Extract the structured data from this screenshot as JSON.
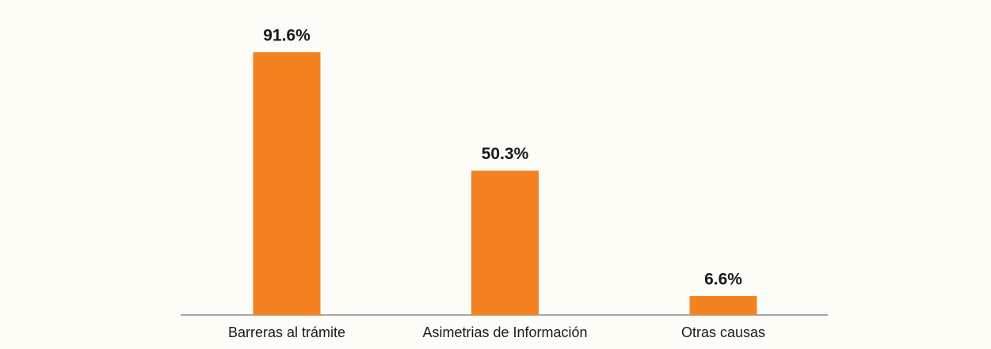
{
  "chart_data": {
    "type": "bar",
    "categories": [
      "Barreras al trámite",
      "Asimetrias de Información",
      "Otras causas"
    ],
    "values": [
      91.6,
      50.3,
      6.6
    ],
    "value_labels": [
      "91.6%",
      "50.3%",
      "6.6%"
    ],
    "color": "#f58220"
  }
}
